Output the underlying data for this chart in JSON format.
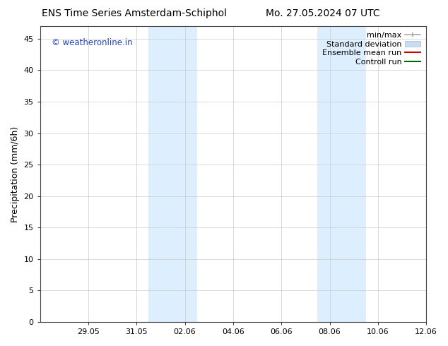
{
  "title_left": "ENS Time Series Amsterdam-Schiphol",
  "title_right": "Mo. 27.05.2024 07 UTC",
  "ylabel": "Precipitation (mm/6h)",
  "ylim": [
    0,
    47
  ],
  "yticks": [
    0,
    5,
    10,
    15,
    20,
    25,
    30,
    35,
    40,
    45
  ],
  "xtick_labels": [
    "29.05",
    "31.05",
    "02.06",
    "04.06",
    "06.06",
    "08.06",
    "10.06",
    "12.06"
  ],
  "xtick_positions": [
    2,
    4,
    6,
    8,
    10,
    12,
    14,
    16
  ],
  "xlim": [
    0,
    16
  ],
  "shaded_bands": [
    [
      4.5,
      5.5
    ],
    [
      5.5,
      6.5
    ],
    [
      11.5,
      12.5
    ],
    [
      12.5,
      13.5
    ]
  ],
  "shaded_color": "#ddeeff",
  "background_color": "#ffffff",
  "watermark_text": "© weatheronline.in",
  "watermark_color": "#2244bb",
  "legend_labels": [
    "min/max",
    "Standard deviation",
    "Ensemble mean run",
    "Controll run"
  ],
  "legend_colors": [
    "#aaaaaa",
    "#c8ddf0",
    "#cc0000",
    "#006600"
  ],
  "title_fontsize": 10,
  "tick_fontsize": 8,
  "ylabel_fontsize": 9,
  "legend_fontsize": 8
}
